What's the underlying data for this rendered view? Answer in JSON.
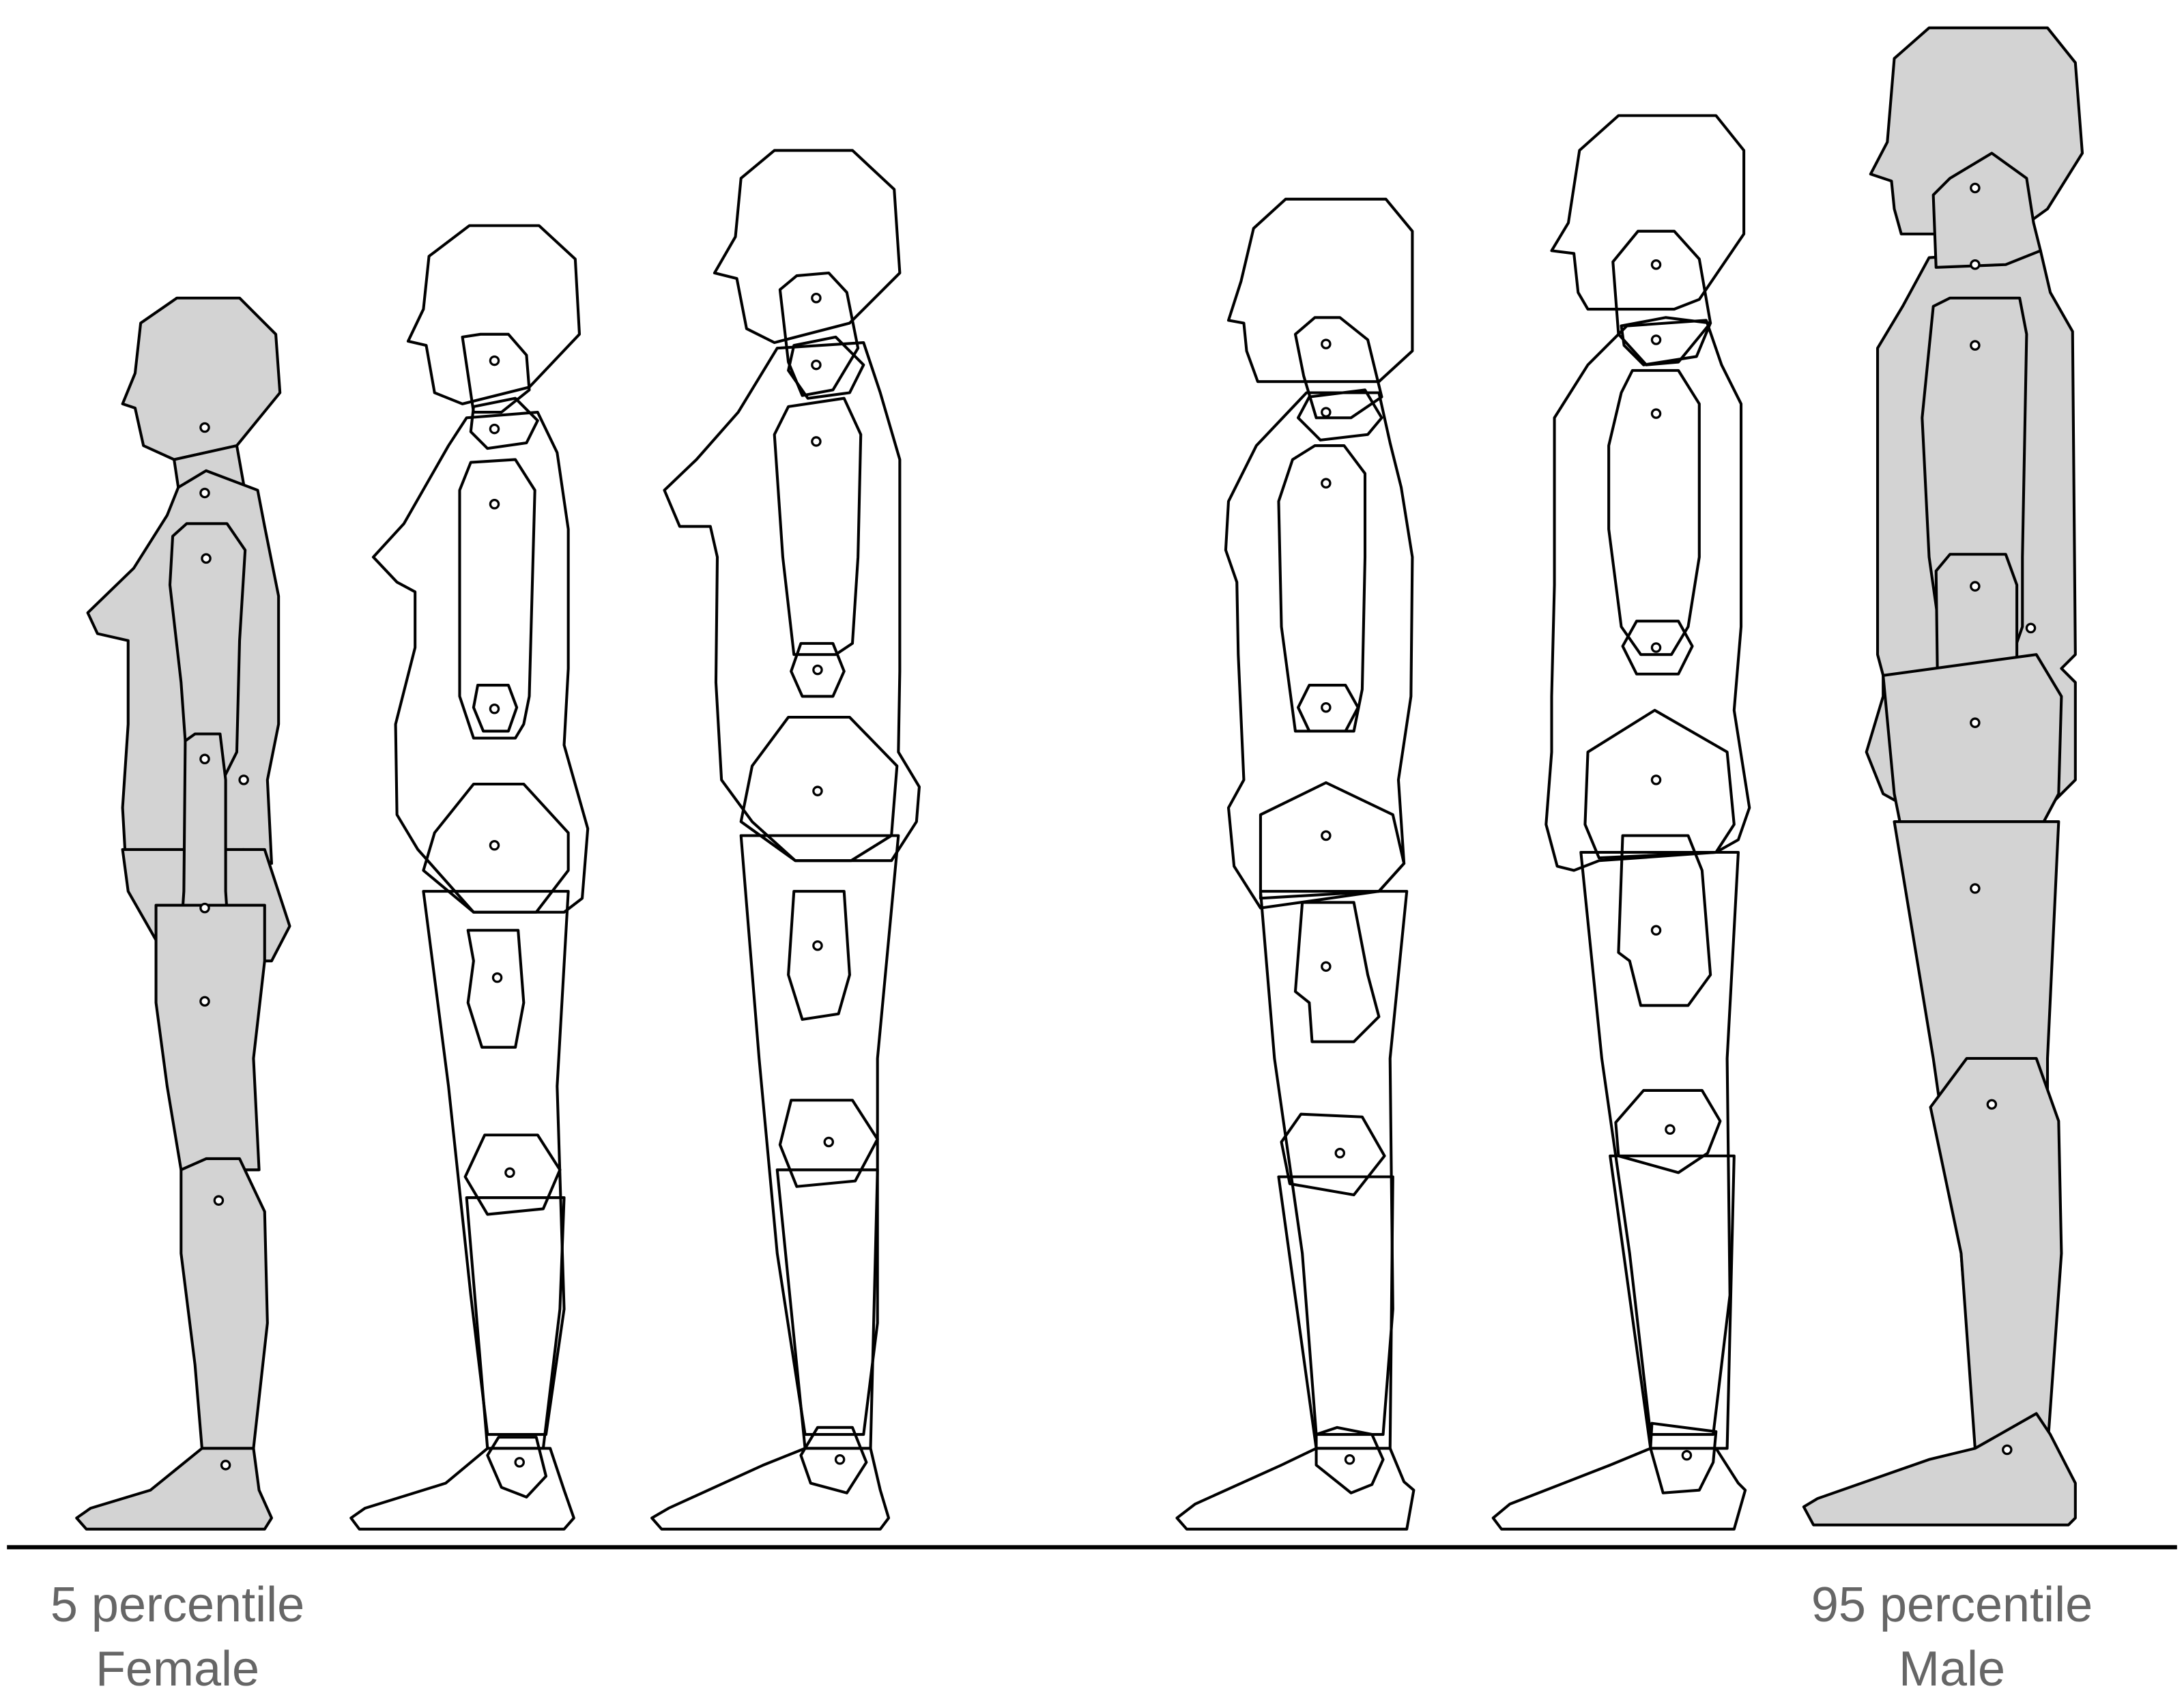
{
  "figures": [
    {
      "id": "fig1",
      "shaded": true
    },
    {
      "id": "fig2",
      "shaded": false
    },
    {
      "id": "fig3",
      "shaded": false
    },
    {
      "id": "fig4",
      "shaded": false
    },
    {
      "id": "fig5",
      "shaded": false
    },
    {
      "id": "fig6",
      "shaded": true
    }
  ],
  "labels": {
    "left": {
      "line1": "5 percentile",
      "line2": "Female"
    },
    "right": {
      "line1": "95 percentile",
      "line2": "Male"
    }
  },
  "colors": {
    "fill_shaded": "#d3d3d3",
    "stroke": "#000000",
    "caption_text": "#666666",
    "background": "#ffffff"
  }
}
